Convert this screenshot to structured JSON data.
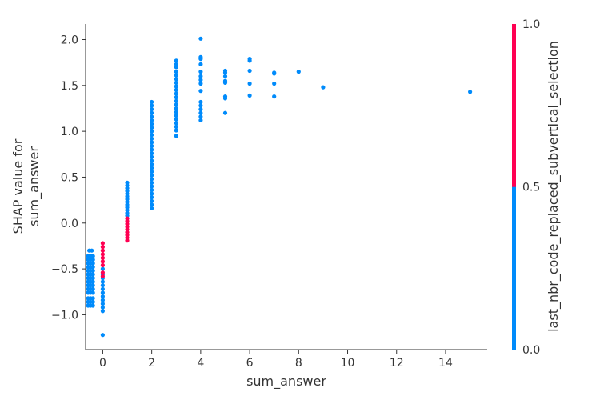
{
  "chart_data": {
    "type": "scatter",
    "title": "",
    "xlabel": "sum_answer",
    "ylabel_lines": [
      "SHAP value for",
      "sum_answer"
    ],
    "xlim": [
      -0.7,
      15.7
    ],
    "ylim": [
      -1.38,
      2.17
    ],
    "xticks": [
      0,
      2,
      4,
      6,
      8,
      10,
      12,
      14
    ],
    "yticks": [
      -1.0,
      -0.5,
      0.0,
      0.5,
      1.0,
      1.5,
      2.0
    ],
    "xtick_labels": [
      "0",
      "2",
      "4",
      "6",
      "8",
      "10",
      "12",
      "14"
    ],
    "ytick_labels": [
      "−1.0",
      "−0.5",
      "0.0",
      "0.5",
      "1.0",
      "1.5",
      "2.0"
    ],
    "colors": {
      "low": "#008bfb",
      "high": "#ff0052",
      "axis": "#333333"
    },
    "grid": false,
    "colorbar": {
      "label": "last_nbr_code_replaced_subvertical_selection",
      "range": [
        0.0,
        1.0
      ],
      "ticks": [
        0.0,
        0.5,
        1.0
      ],
      "tick_labels": [
        "0.0",
        "0.5",
        "1.0"
      ]
    },
    "series": [
      {
        "color_value": 0,
        "points": [
          [
            -0.55,
            -0.3
          ],
          [
            -0.45,
            -0.3
          ],
          [
            -0.6,
            -0.36
          ],
          [
            -0.5,
            -0.36
          ],
          [
            -0.4,
            -0.36
          ],
          [
            -0.6,
            -0.4
          ],
          [
            -0.5,
            -0.4
          ],
          [
            -0.4,
            -0.4
          ],
          [
            -0.6,
            -0.44
          ],
          [
            -0.5,
            -0.44
          ],
          [
            -0.4,
            -0.44
          ],
          [
            -0.6,
            -0.48
          ],
          [
            -0.5,
            -0.48
          ],
          [
            -0.4,
            -0.48
          ],
          [
            -0.6,
            -0.52
          ],
          [
            -0.5,
            -0.52
          ],
          [
            -0.4,
            -0.52
          ],
          [
            -0.6,
            -0.56
          ],
          [
            -0.5,
            -0.56
          ],
          [
            -0.4,
            -0.56
          ],
          [
            -0.6,
            -0.6
          ],
          [
            -0.5,
            -0.6
          ],
          [
            -0.4,
            -0.6
          ],
          [
            -0.6,
            -0.64
          ],
          [
            -0.5,
            -0.64
          ],
          [
            -0.4,
            -0.64
          ],
          [
            -0.6,
            -0.68
          ],
          [
            -0.5,
            -0.68
          ],
          [
            -0.4,
            -0.68
          ],
          [
            -0.6,
            -0.72
          ],
          [
            -0.5,
            -0.72
          ],
          [
            -0.4,
            -0.72
          ],
          [
            -0.6,
            -0.76
          ],
          [
            -0.5,
            -0.76
          ],
          [
            -0.4,
            -0.76
          ],
          [
            -0.6,
            -0.82
          ],
          [
            -0.5,
            -0.82
          ],
          [
            -0.4,
            -0.82
          ],
          [
            -0.6,
            -0.86
          ],
          [
            -0.5,
            -0.86
          ],
          [
            -0.4,
            -0.86
          ],
          [
            -0.6,
            -0.9
          ],
          [
            -0.5,
            -0.9
          ],
          [
            -0.4,
            -0.9
          ],
          [
            0,
            -0.5
          ],
          [
            0,
            -0.56
          ],
          [
            0,
            -0.6
          ],
          [
            0,
            -0.64
          ],
          [
            0,
            -0.68
          ],
          [
            0,
            -0.72
          ],
          [
            0,
            -0.76
          ],
          [
            0,
            -0.8
          ],
          [
            0,
            -0.84
          ],
          [
            0,
            -0.88
          ],
          [
            0,
            -0.92
          ],
          [
            0,
            -0.96
          ],
          [
            0,
            -1.22
          ],
          [
            1,
            0.08
          ],
          [
            1,
            0.11
          ],
          [
            1,
            0.14
          ],
          [
            1,
            0.17
          ],
          [
            1,
            0.2
          ],
          [
            1,
            0.23
          ],
          [
            1,
            0.26
          ],
          [
            1,
            0.29
          ],
          [
            1,
            0.32
          ],
          [
            1,
            0.35
          ],
          [
            1,
            0.38
          ],
          [
            1,
            0.41
          ],
          [
            1,
            0.44
          ],
          [
            2,
            0.16
          ],
          [
            2,
            0.2
          ],
          [
            2,
            0.24
          ],
          [
            2,
            0.28
          ],
          [
            2,
            0.32
          ],
          [
            2,
            0.36
          ],
          [
            2,
            0.4
          ],
          [
            2,
            0.44
          ],
          [
            2,
            0.48
          ],
          [
            2,
            0.52
          ],
          [
            2,
            0.56
          ],
          [
            2,
            0.6
          ],
          [
            2,
            0.64
          ],
          [
            2,
            0.68
          ],
          [
            2,
            0.72
          ],
          [
            2,
            0.76
          ],
          [
            2,
            0.8
          ],
          [
            2,
            0.84
          ],
          [
            2,
            0.88
          ],
          [
            2,
            0.92
          ],
          [
            2,
            0.96
          ],
          [
            2,
            1.0
          ],
          [
            2,
            1.04
          ],
          [
            2,
            1.08
          ],
          [
            2,
            1.12
          ],
          [
            2,
            1.16
          ],
          [
            2,
            1.2
          ],
          [
            2,
            1.24
          ],
          [
            2,
            1.28
          ],
          [
            2,
            1.32
          ],
          [
            3,
            0.95
          ],
          [
            3,
            1.01
          ],
          [
            3,
            1.05
          ],
          [
            3,
            1.09
          ],
          [
            3,
            1.13
          ],
          [
            3,
            1.17
          ],
          [
            3,
            1.21
          ],
          [
            3,
            1.25
          ],
          [
            3,
            1.29
          ],
          [
            3,
            1.33
          ],
          [
            3,
            1.37
          ],
          [
            3,
            1.41
          ],
          [
            3,
            1.45
          ],
          [
            3,
            1.49
          ],
          [
            3,
            1.53
          ],
          [
            3,
            1.57
          ],
          [
            3,
            1.61
          ],
          [
            3,
            1.65
          ],
          [
            3,
            1.7
          ],
          [
            3,
            1.73
          ],
          [
            3,
            1.77
          ],
          [
            4,
            1.12
          ],
          [
            4,
            1.16
          ],
          [
            4,
            1.2
          ],
          [
            4,
            1.24
          ],
          [
            4,
            1.28
          ],
          [
            4,
            1.32
          ],
          [
            4,
            1.44
          ],
          [
            4,
            1.52
          ],
          [
            4,
            1.56
          ],
          [
            4,
            1.6
          ],
          [
            4,
            1.65
          ],
          [
            4,
            1.73
          ],
          [
            4,
            1.79
          ],
          [
            4,
            1.81
          ],
          [
            4,
            2.01
          ],
          [
            5,
            1.2
          ],
          [
            5,
            1.36
          ],
          [
            5,
            1.38
          ],
          [
            5,
            1.53
          ],
          [
            5,
            1.55
          ],
          [
            5,
            1.6
          ],
          [
            5,
            1.64
          ],
          [
            5,
            1.66
          ],
          [
            6,
            1.39
          ],
          [
            6,
            1.52
          ],
          [
            6,
            1.66
          ],
          [
            6,
            1.77
          ],
          [
            6,
            1.79
          ],
          [
            7,
            1.38
          ],
          [
            7,
            1.52
          ],
          [
            7,
            1.63
          ],
          [
            7,
            1.64
          ],
          [
            8,
            1.65
          ],
          [
            9,
            1.48
          ],
          [
            15,
            1.43
          ]
        ]
      },
      {
        "color_value": 1,
        "points": [
          [
            0,
            -0.22
          ],
          [
            0,
            -0.26
          ],
          [
            0,
            -0.3
          ],
          [
            0,
            -0.34
          ],
          [
            0,
            -0.38
          ],
          [
            0,
            -0.42
          ],
          [
            0,
            -0.46
          ],
          [
            0,
            -0.54
          ],
          [
            0,
            -0.58
          ],
          [
            1,
            0.05
          ],
          [
            1,
            0.02
          ],
          [
            1,
            -0.01
          ],
          [
            1,
            -0.04
          ],
          [
            1,
            -0.07
          ],
          [
            1,
            -0.1
          ],
          [
            1,
            -0.13
          ],
          [
            1,
            -0.16
          ],
          [
            1,
            -0.19
          ]
        ]
      }
    ]
  }
}
